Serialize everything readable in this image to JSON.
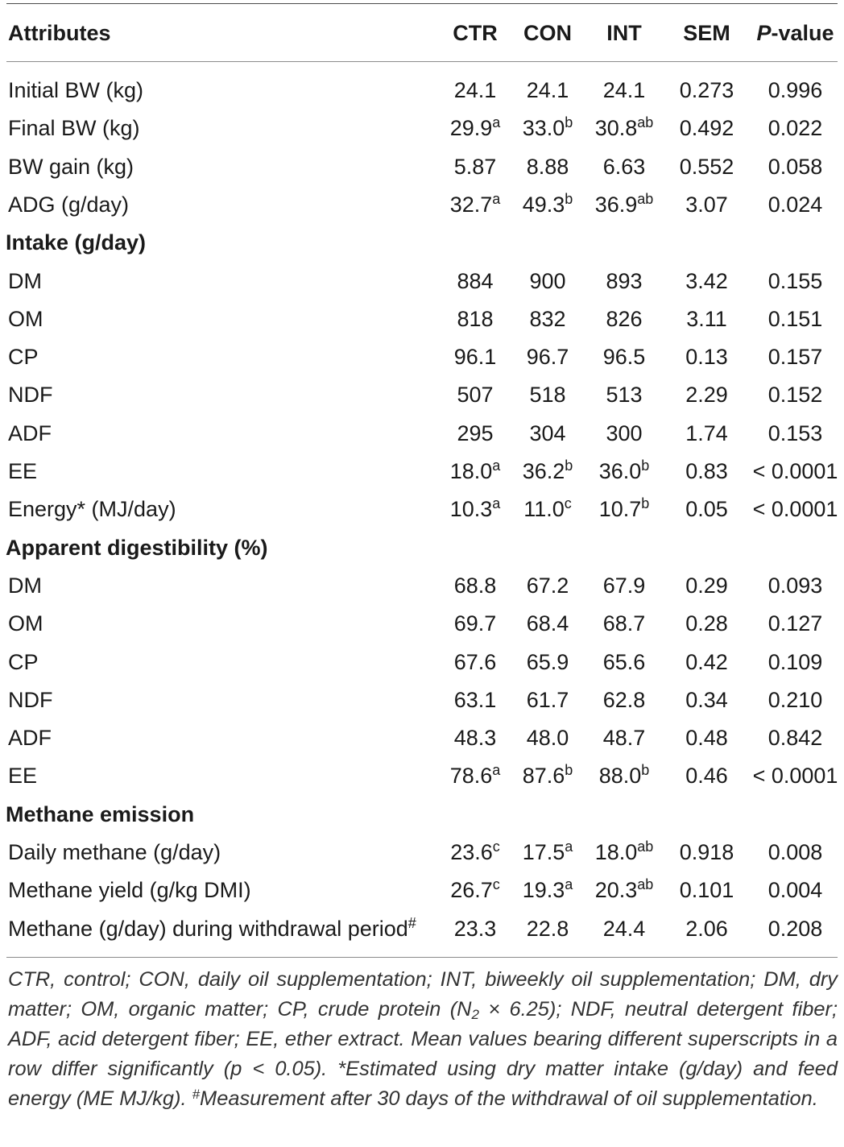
{
  "header": {
    "attributes": "Attributes",
    "ctr": "CTR",
    "con": "CON",
    "int": "INT",
    "sem": "SEM",
    "p_italic": "P",
    "p_rest": "-value"
  },
  "rows": {
    "r0": {
      "label": "Initial BW (kg)",
      "ctr": "24.1",
      "ctr_sup": "",
      "con": "24.1",
      "con_sup": "",
      "int": "24.1",
      "int_sup": "",
      "sem": "0.273",
      "p": "0.996"
    },
    "r1": {
      "label": "Final BW (kg)",
      "ctr": "29.9",
      "ctr_sup": "a",
      "con": "33.0",
      "con_sup": "b",
      "int": "30.8",
      "int_sup": "ab",
      "sem": "0.492",
      "p": "0.022"
    },
    "r2": {
      "label": "BW gain (kg)",
      "ctr": "5.87",
      "ctr_sup": "",
      "con": "8.88",
      "con_sup": "",
      "int": "6.63",
      "int_sup": "",
      "sem": "0.552",
      "p": "0.058"
    },
    "r3": {
      "label": "ADG (g/day)",
      "ctr": "32.7",
      "ctr_sup": "a",
      "con": "49.3",
      "con_sup": "b",
      "int": "36.9",
      "int_sup": "ab",
      "sem": "3.07",
      "p": "0.024"
    },
    "s1": {
      "label": "Intake (g/day)"
    },
    "r4": {
      "label": "DM",
      "ctr": "884",
      "ctr_sup": "",
      "con": "900",
      "con_sup": "",
      "int": "893",
      "int_sup": "",
      "sem": "3.42",
      "p": "0.155"
    },
    "r5": {
      "label": "OM",
      "ctr": "818",
      "ctr_sup": "",
      "con": "832",
      "con_sup": "",
      "int": "826",
      "int_sup": "",
      "sem": "3.11",
      "p": "0.151"
    },
    "r6": {
      "label": "CP",
      "ctr": "96.1",
      "ctr_sup": "",
      "con": "96.7",
      "con_sup": "",
      "int": "96.5",
      "int_sup": "",
      "sem": "0.13",
      "p": "0.157"
    },
    "r7": {
      "label": "NDF",
      "ctr": "507",
      "ctr_sup": "",
      "con": "518",
      "con_sup": "",
      "int": "513",
      "int_sup": "",
      "sem": "2.29",
      "p": "0.152"
    },
    "r8": {
      "label": "ADF",
      "ctr": "295",
      "ctr_sup": "",
      "con": "304",
      "con_sup": "",
      "int": "300",
      "int_sup": "",
      "sem": "1.74",
      "p": "0.153"
    },
    "r9": {
      "label": "EE",
      "ctr": "18.0",
      "ctr_sup": "a",
      "con": "36.2",
      "con_sup": "b",
      "int": "36.0",
      "int_sup": "b",
      "sem": "0.83",
      "p": "< 0.0001"
    },
    "r10": {
      "label": "Energy* (MJ/day)",
      "ctr": "10.3",
      "ctr_sup": "a",
      "con": "11.0",
      "con_sup": "c",
      "int": "10.7",
      "int_sup": "b",
      "sem": "0.05",
      "p": "< 0.0001"
    },
    "s2": {
      "label": "Apparent digestibility (%)"
    },
    "r11": {
      "label": "DM",
      "ctr": "68.8",
      "ctr_sup": "",
      "con": "67.2",
      "con_sup": "",
      "int": "67.9",
      "int_sup": "",
      "sem": "0.29",
      "p": "0.093"
    },
    "r12": {
      "label": "OM",
      "ctr": "69.7",
      "ctr_sup": "",
      "con": "68.4",
      "con_sup": "",
      "int": "68.7",
      "int_sup": "",
      "sem": "0.28",
      "p": "0.127"
    },
    "r13": {
      "label": "CP",
      "ctr": "67.6",
      "ctr_sup": "",
      "con": "65.9",
      "con_sup": "",
      "int": "65.6",
      "int_sup": "",
      "sem": "0.42",
      "p": "0.109"
    },
    "r14": {
      "label": "NDF",
      "ctr": "63.1",
      "ctr_sup": "",
      "con": "61.7",
      "con_sup": "",
      "int": "62.8",
      "int_sup": "",
      "sem": "0.34",
      "p": "0.210"
    },
    "r15": {
      "label": "ADF",
      "ctr": "48.3",
      "ctr_sup": "",
      "con": "48.0",
      "con_sup": "",
      "int": "48.7",
      "int_sup": "",
      "sem": "0.48",
      "p": "0.842"
    },
    "r16": {
      "label": "EE",
      "ctr": "78.6",
      "ctr_sup": "a",
      "con": "87.6",
      "con_sup": "b",
      "int": "88.0",
      "int_sup": "b",
      "sem": "0.46",
      "p": "< 0.0001"
    },
    "s3": {
      "label": "Methane emission"
    },
    "r17": {
      "label": "Daily methane (g/day)",
      "ctr": "23.6",
      "ctr_sup": "c",
      "con": "17.5",
      "con_sup": "a",
      "int": "18.0",
      "int_sup": "ab",
      "sem": "0.918",
      "p": "0.008"
    },
    "r18": {
      "label": "Methane yield (g/kg DMI)",
      "ctr": "26.7",
      "ctr_sup": "c",
      "con": "19.3",
      "con_sup": "a",
      "int": "20.3",
      "int_sup": "ab",
      "sem": "0.101",
      "p": "0.004"
    },
    "r19": {
      "label": "Methane (g/day) during withdrawal period",
      "label_sup": "#",
      "ctr": "23.3",
      "ctr_sup": "",
      "con": "22.8",
      "con_sup": "",
      "int": "24.4",
      "int_sup": "",
      "sem": "2.06",
      "p": "0.208"
    }
  },
  "footnote": {
    "part1": "CTR, control; CON, daily oil supplementation; INT, biweekly oil supplementation; DM, dry matter; OM, organic matter; CP, crude protein (N",
    "n_sub": "2",
    "part2": " × 6.25); NDF, neutral detergent fiber; ADF, acid detergent fiber; EE, ether extract. Mean values bearing different superscripts in a row differ significantly (p < 0.05). *Estimated using dry matter intake (g/day) and feed energy (ME MJ/kg). ",
    "hash": "#",
    "part3": "Measurement after 30 days of the withdrawal of oil supplementation."
  }
}
